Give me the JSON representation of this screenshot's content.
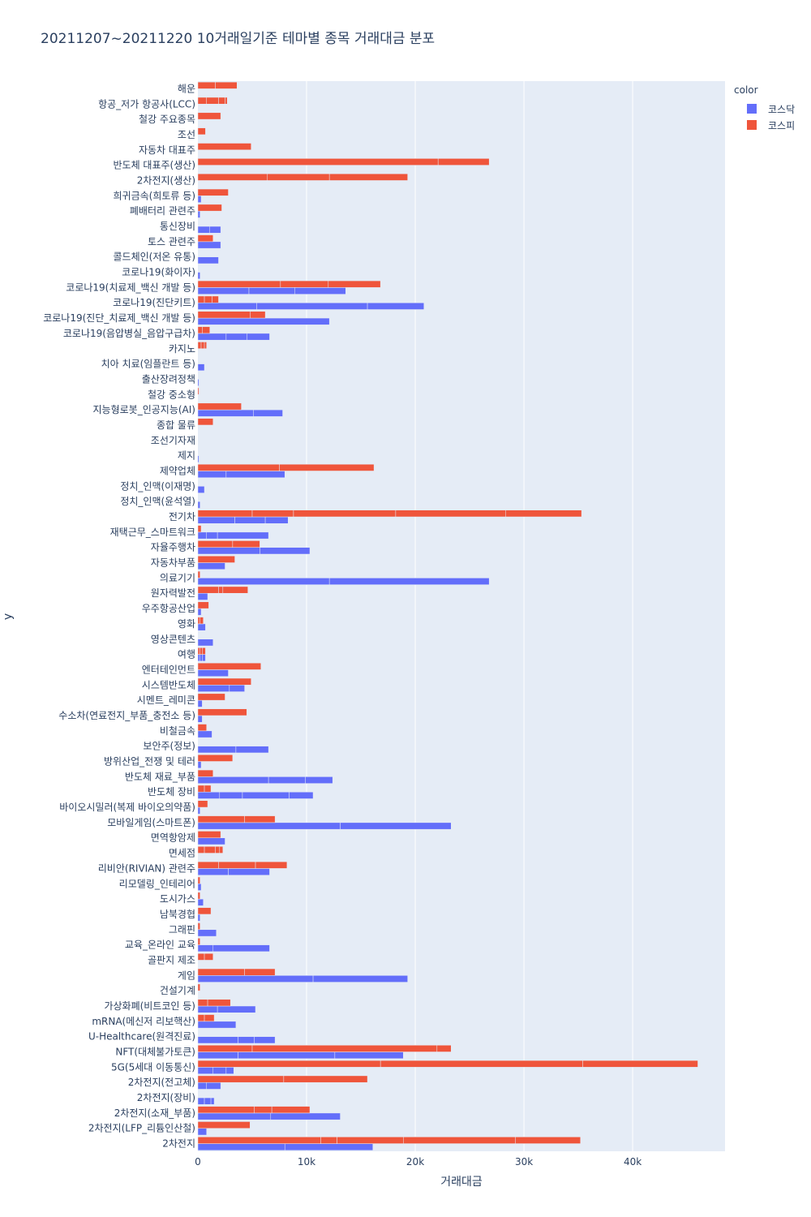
{
  "chart_data": {
    "type": "bar",
    "orientation": "horizontal",
    "barmode": "stacked segments per stock",
    "title": "20211207~20211220 10거래일기준 테마별 종목 거래대금 분포",
    "xlabel": "거래대금",
    "ylabel": "y",
    "xlim": [
      0,
      48500
    ],
    "x_ticks": [
      {
        "value": 0,
        "label": "0"
      },
      {
        "value": 10000,
        "label": "10k"
      },
      {
        "value": 20000,
        "label": "20k"
      },
      {
        "value": 30000,
        "label": "30k"
      },
      {
        "value": 40000,
        "label": "40k"
      }
    ],
    "grid": true,
    "legend": {
      "title": "color",
      "placement": "top-right"
    },
    "categories": [
      "해운",
      "항공_저가 항공사(LCC)",
      "철강 주요종목",
      "조선",
      "자동차 대표주",
      "반도체 대표주(생산)",
      "2차전지(생산)",
      "희귀금속(희토류 등)",
      "폐배터리 관련주",
      "통신장비",
      "토스 관련주",
      "콜드체인(저온 유통)",
      "코로나19(화이자)",
      "코로나19(치료제_백신 개발 등)",
      "코로나19(진단키트)",
      "코로나19(진단_치료제_백신 개발 등)",
      "코로나19(음압병실_음압구급차)",
      "카지노",
      "치아 치료(임플란트 등)",
      "출산장려정책",
      "철강 중소형",
      "지능형로봇_인공지능(AI)",
      "종합 물류",
      "조선기자재",
      "제지",
      "제약업체",
      "정치_인맥(이재명)",
      "정치_인맥(윤석열)",
      "전기차",
      "재택근무_스마트워크",
      "자율주행차",
      "자동차부품",
      "의료기기",
      "원자력발전",
      "우주항공산업",
      "영화",
      "영상콘텐츠",
      "여행",
      "엔터테인먼트",
      "시스템반도체",
      "시멘트_레미콘",
      "수소차(연료전지_부품_충전소 등)",
      "비철금속",
      "보안주(정보)",
      "방위산업_전쟁 및 테러",
      "반도체 재료_부품",
      "반도체 장비",
      "바이오시밀러(복제 바이오의약품)",
      "모바일게임(스마트폰)",
      "면역항암제",
      "면세점",
      "리비안(RIVIAN) 관련주",
      "리모델링_인테리어",
      "도시가스",
      "남북경협",
      "그래핀",
      "교육_온라인 교육",
      "골판지 제조",
      "게임",
      "건설기계",
      "가상화폐(비트코인 등)",
      "mRNA(메신저 리보핵산)",
      "U-Healthcare(원격진료)",
      "NFT(대체불가토큰)",
      "5G(5세대 이동통신)",
      "2차전지(전고체)",
      "2차전지(장비)",
      "2차전지(소재_부품)",
      "2차전지(LFP_리튬인산철)",
      "2차전지"
    ],
    "series": [
      {
        "name": "코스닥",
        "color": "#636efa",
        "values": [
          0,
          0,
          0,
          0,
          0,
          0,
          0,
          300,
          200,
          2100,
          2100,
          1900,
          200,
          13600,
          20800,
          12100,
          6600,
          0,
          600,
          100,
          0,
          7800,
          0,
          0,
          100,
          8000,
          600,
          200,
          8300,
          6500,
          10300,
          2500,
          26800,
          900,
          300,
          700,
          1400,
          700,
          2800,
          4300,
          400,
          400,
          1300,
          6500,
          300,
          12400,
          10600,
          200,
          23300,
          2500,
          0,
          6600,
          300,
          500,
          200,
          1700,
          6600,
          0,
          19300,
          0,
          5300,
          3500,
          7100,
          18900,
          3300,
          2100,
          1500,
          13100,
          800,
          16100
        ],
        "segments": [
          [],
          [],
          [],
          [],
          [],
          [],
          [],
          [],
          [],
          [
            1100,
            1000
          ],
          [],
          [],
          [],
          [
            4700,
            4200,
            4700
          ],
          [
            5400,
            10200,
            5200
          ],
          [],
          [
            2600,
            1900,
            2100
          ],
          [],
          [],
          [],
          [],
          [
            5100,
            2700
          ],
          [],
          [],
          [],
          [
            2600,
            5400
          ],
          [],
          [],
          [
            3400,
            2800,
            2100
          ],
          [
            800,
            1000,
            4700
          ],
          [
            5700,
            4600
          ],
          [],
          [
            12100,
            14700
          ],
          [],
          [],
          [],
          [],
          [
            200,
            200,
            300
          ],
          [],
          [
            2900,
            1400
          ],
          [],
          [],
          [],
          [
            3500,
            3000
          ],
          [],
          [
            6500,
            3400,
            2500
          ],
          [
            2000,
            2100,
            4300,
            2200
          ],
          [],
          [
            13100,
            10200
          ],
          [],
          [],
          [
            2800,
            3800
          ],
          [],
          [],
          [],
          [],
          [
            1400,
            5200
          ],
          [],
          [
            10600,
            8700
          ],
          [],
          [
            1800,
            3500
          ],
          [],
          [
            3700,
            1500,
            1900
          ],
          [
            3700,
            8900,
            6300
          ],
          [
            1400,
            1200,
            700
          ],
          [
            800,
            1300
          ],
          [
            600,
            600,
            300
          ],
          [
            6700,
            6400
          ],
          [],
          [
            8000,
            8100
          ]
        ]
      },
      {
        "name": "코스피",
        "color": "#ef553b",
        "values": [
          3600,
          2700,
          2100,
          700,
          4900,
          26800,
          19300,
          2800,
          2200,
          0,
          1400,
          0,
          0,
          16800,
          1900,
          6200,
          1200,
          800,
          0,
          0,
          100,
          4000,
          1400,
          0,
          0,
          16200,
          0,
          0,
          35300,
          300,
          5700,
          3400,
          200,
          4600,
          1000,
          600,
          0,
          700,
          5800,
          4900,
          2500,
          4500,
          800,
          0,
          3200,
          1400,
          1200,
          900,
          7100,
          2100,
          2200,
          8200,
          200,
          200,
          1200,
          200,
          200,
          1400,
          7100,
          200,
          3000,
          1500,
          0,
          23300,
          46000,
          15600,
          0,
          10300,
          4800,
          35200
        ],
        "segments": [
          [
            1600,
            2000
          ],
          [
            800,
            1100,
            600,
            200
          ],
          [],
          [],
          [],
          [
            22100,
            4700
          ],
          [
            6400,
            5700,
            7200
          ],
          [],
          [],
          [],
          [],
          [],
          [],
          [
            7600,
            4400,
            4800
          ],
          [
            600,
            700,
            600
          ],
          [
            4800,
            1400
          ],
          [
            400,
            700
          ],
          [
            300,
            300,
            200
          ],
          [],
          [],
          [],
          [],
          [],
          [],
          [],
          [
            7500,
            8700
          ],
          [],
          [],
          [
            5000,
            3800,
            9400,
            10100,
            7000
          ],
          [],
          [
            3200,
            2500
          ],
          [],
          [],
          [
            1900,
            400,
            2300
          ],
          [],
          [
            200,
            300
          ],
          [],
          [
            200,
            200,
            300
          ],
          [],
          [
            4900
          ],
          [],
          [],
          [],
          [],
          [],
          [],
          [
            600,
            600
          ],
          [],
          [
            4300,
            2800
          ],
          [],
          [
            600,
            1000,
            400,
            300
          ],
          [
            1900,
            3400,
            2900
          ],
          [],
          [],
          [],
          [],
          [],
          [
            600,
            800
          ],
          [
            4300,
            2800
          ],
          [],
          [
            900,
            2100
          ],
          [
            600,
            900
          ],
          [],
          [
            5000,
            17000,
            1300
          ],
          [
            16800,
            18600,
            10600
          ],
          [
            7900,
            7700
          ],
          [],
          [
            5200,
            1600,
            3500
          ],
          [],
          [
            11300,
            1500,
            6100,
            10300,
            6000
          ]
        ]
      }
    ]
  }
}
